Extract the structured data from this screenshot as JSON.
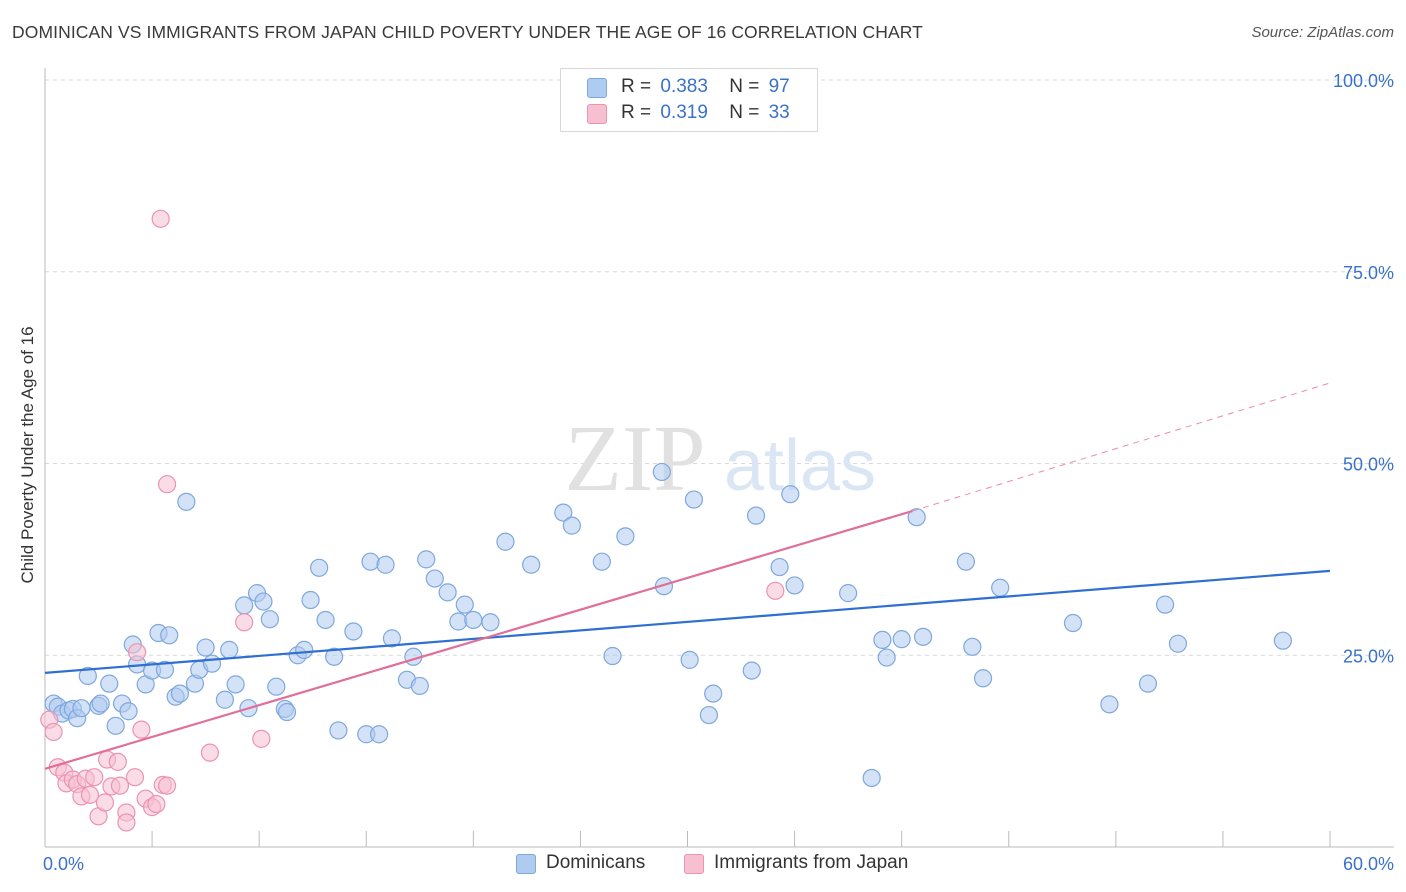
{
  "title": "DOMINICAN VS IMMIGRANTS FROM JAPAN CHILD POVERTY UNDER THE AGE OF 16 CORRELATION CHART",
  "source": "Source: ZipAtlas.com",
  "watermark": {
    "zip": "ZIP",
    "atlas": "atlas"
  },
  "legend_top": {
    "rows": [
      {
        "r_label": "R =",
        "r_value": "0.383",
        "n_label": "N =",
        "n_value": "97"
      },
      {
        "r_label": "R =",
        "r_value": "0.319",
        "n_label": "N =",
        "n_value": "33"
      }
    ]
  },
  "legend_bottom": {
    "series0": "Dominicans",
    "series1": "Immigrants from Japan"
  },
  "colors": {
    "blue_fill": "#aecbf0",
    "blue_stroke": "#7fa8dc",
    "blue_line": "#2e6fd1",
    "pink_fill": "#f6c0d1",
    "pink_stroke": "#eb93b0",
    "pink_line": "#e0709a",
    "axis_text": "#3a72c9",
    "grid": "#d9d9d9"
  },
  "chart_data": {
    "type": "scatter",
    "title": "DOMINICAN VS IMMIGRANTS FROM JAPAN CHILD POVERTY UNDER THE AGE OF 16 CORRELATION CHART",
    "xlabel": "",
    "ylabel": "Child Poverty Under the Age of 16",
    "xlim": [
      0,
      60
    ],
    "ylim": [
      0,
      100
    ],
    "x_ticks": [
      "0.0%",
      "60.0%"
    ],
    "y_ticks": [
      "25.0%",
      "50.0%",
      "75.0%",
      "100.0%"
    ],
    "y_tick_values": [
      25,
      50,
      75,
      100
    ],
    "grid": true,
    "legend": "top-center",
    "series": [
      {
        "name": "Dominicans",
        "R": 0.383,
        "N": 97,
        "trend": {
          "x": [
            0,
            60
          ],
          "y": [
            22.7,
            36.0
          ]
        },
        "points": [
          [
            0.4,
            18.7
          ],
          [
            0.6,
            18.3
          ],
          [
            0.8,
            17.4
          ],
          [
            1.1,
            17.8
          ],
          [
            1.3,
            18.0
          ],
          [
            1.5,
            16.8
          ],
          [
            1.7,
            18.1
          ],
          [
            2.0,
            22.3
          ],
          [
            2.5,
            18.4
          ],
          [
            2.6,
            18.7
          ],
          [
            3.0,
            21.3
          ],
          [
            3.3,
            15.8
          ],
          [
            3.6,
            18.7
          ],
          [
            3.9,
            17.7
          ],
          [
            4.1,
            26.4
          ],
          [
            4.3,
            23.8
          ],
          [
            4.7,
            21.2
          ],
          [
            5.0,
            23.0
          ],
          [
            5.3,
            27.9
          ],
          [
            5.6,
            23.1
          ],
          [
            5.8,
            27.6
          ],
          [
            6.1,
            19.6
          ],
          [
            6.3,
            20.0
          ],
          [
            6.6,
            45.0
          ],
          [
            7.0,
            21.3
          ],
          [
            7.2,
            23.1
          ],
          [
            7.5,
            26.0
          ],
          [
            7.8,
            23.9
          ],
          [
            8.4,
            19.2
          ],
          [
            8.6,
            25.7
          ],
          [
            8.9,
            21.2
          ],
          [
            9.3,
            31.5
          ],
          [
            9.5,
            18.1
          ],
          [
            9.9,
            33.1
          ],
          [
            10.2,
            32.0
          ],
          [
            10.5,
            29.7
          ],
          [
            10.8,
            20.9
          ],
          [
            11.2,
            18.0
          ],
          [
            11.3,
            17.6
          ],
          [
            11.8,
            25.0
          ],
          [
            12.1,
            25.7
          ],
          [
            12.4,
            32.2
          ],
          [
            12.8,
            36.4
          ],
          [
            13.1,
            29.6
          ],
          [
            13.5,
            24.8
          ],
          [
            13.7,
            15.2
          ],
          [
            14.4,
            28.1
          ],
          [
            15.0,
            14.7
          ],
          [
            15.6,
            14.7
          ],
          [
            15.2,
            37.2
          ],
          [
            15.9,
            36.8
          ],
          [
            16.2,
            27.2
          ],
          [
            16.9,
            21.8
          ],
          [
            17.2,
            24.8
          ],
          [
            17.5,
            21.0
          ],
          [
            17.8,
            37.5
          ],
          [
            18.2,
            35.0
          ],
          [
            18.8,
            33.2
          ],
          [
            19.3,
            29.4
          ],
          [
            19.6,
            31.6
          ],
          [
            20.0,
            29.6
          ],
          [
            20.8,
            29.3
          ],
          [
            21.5,
            39.8
          ],
          [
            22.7,
            36.8
          ],
          [
            24.2,
            43.6
          ],
          [
            24.6,
            41.9
          ],
          [
            26.0,
            37.2
          ],
          [
            26.5,
            24.9
          ],
          [
            27.1,
            40.5
          ],
          [
            28.8,
            48.9
          ],
          [
            28.9,
            34.0
          ],
          [
            30.1,
            24.4
          ],
          [
            30.3,
            45.3
          ],
          [
            31.0,
            17.2
          ],
          [
            31.2,
            20.0
          ],
          [
            33.0,
            23.0
          ],
          [
            33.2,
            43.2
          ],
          [
            34.3,
            36.5
          ],
          [
            34.8,
            46.0
          ],
          [
            35.0,
            34.1
          ],
          [
            37.5,
            33.1
          ],
          [
            39.1,
            27.0
          ],
          [
            39.3,
            24.7
          ],
          [
            40.0,
            27.1
          ],
          [
            40.7,
            43.0
          ],
          [
            41.0,
            27.4
          ],
          [
            43.0,
            37.2
          ],
          [
            43.3,
            26.1
          ],
          [
            43.8,
            22.0
          ],
          [
            44.6,
            33.8
          ],
          [
            48.0,
            29.2
          ],
          [
            49.7,
            18.6
          ],
          [
            51.5,
            21.3
          ],
          [
            52.3,
            31.6
          ],
          [
            52.9,
            26.5
          ],
          [
            57.8,
            26.9
          ],
          [
            38.6,
            9.0
          ]
        ]
      },
      {
        "name": "Immigrants from Japan",
        "R": 0.319,
        "N": 33,
        "trend": {
          "x": [
            0,
            40.5
          ],
          "y": [
            10.2,
            43.8
          ],
          "dashed_extension": {
            "x": [
              40.5,
              60
            ],
            "y": [
              43.8,
              60.5
            ]
          }
        },
        "points": [
          [
            0.2,
            16.6
          ],
          [
            0.4,
            15.0
          ],
          [
            0.6,
            10.4
          ],
          [
            0.9,
            9.7
          ],
          [
            1.0,
            8.3
          ],
          [
            1.3,
            8.8
          ],
          [
            1.5,
            8.2
          ],
          [
            1.7,
            6.6
          ],
          [
            1.9,
            8.9
          ],
          [
            2.1,
            6.8
          ],
          [
            2.3,
            9.1
          ],
          [
            2.5,
            4.0
          ],
          [
            2.8,
            5.8
          ],
          [
            2.9,
            11.4
          ],
          [
            3.1,
            7.9
          ],
          [
            3.4,
            11.1
          ],
          [
            3.5,
            8.0
          ],
          [
            3.8,
            4.5
          ],
          [
            3.8,
            3.2
          ],
          [
            4.2,
            9.1
          ],
          [
            4.3,
            25.4
          ],
          [
            4.5,
            15.3
          ],
          [
            4.7,
            6.3
          ],
          [
            5.0,
            5.2
          ],
          [
            5.2,
            5.6
          ],
          [
            5.5,
            8.1
          ],
          [
            5.7,
            8.0
          ],
          [
            5.4,
            81.9
          ],
          [
            5.7,
            47.3
          ],
          [
            7.7,
            12.3
          ],
          [
            9.3,
            29.3
          ],
          [
            10.1,
            14.1
          ],
          [
            34.1,
            33.4
          ]
        ]
      }
    ]
  }
}
